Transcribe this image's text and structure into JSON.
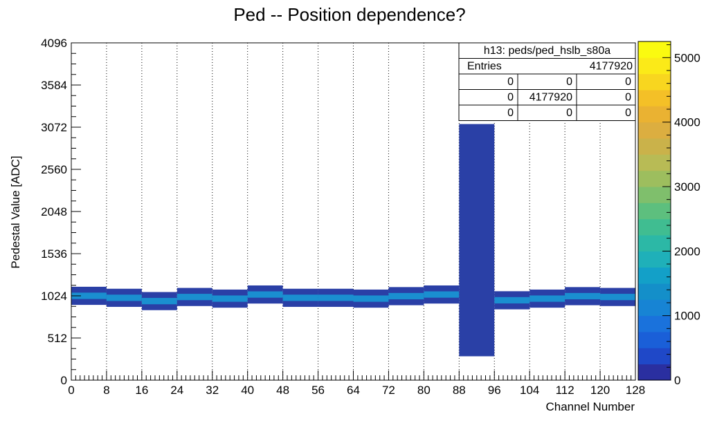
{
  "chart_data": {
    "type": "heatmap",
    "title": "Ped -- Position dependence?",
    "xlabel": "Channel Number",
    "ylabel": "Pedestal Value [ADC]",
    "xlim": [
      0,
      128
    ],
    "ylim": [
      0,
      4096
    ],
    "x_ticks": [
      "0",
      "8",
      "16",
      "24",
      "32",
      "40",
      "48",
      "56",
      "64",
      "72",
      "80",
      "88",
      "96",
      "104",
      "112",
      "120",
      "128"
    ],
    "y_ticks": [
      "0",
      "512",
      "1024",
      "1536",
      "2048",
      "2560",
      "3072",
      "3584",
      "4096"
    ],
    "z_range": [
      0,
      5250
    ],
    "colorbar_ticks": [
      "0",
      "1000",
      "2000",
      "3000",
      "4000",
      "5000"
    ],
    "grid": "vertical dotted lines at x ticks",
    "stats_box": {
      "title": "h13: peds/ped_hslb_s80a",
      "entries_label": "Entries",
      "entries_value": "4177920",
      "rows": [
        [
          "0",
          "0",
          "0"
        ],
        [
          "0",
          "4177920",
          "0"
        ],
        [
          "0",
          "0",
          "0"
        ]
      ]
    },
    "pedestal_band": {
      "description_channels": [
        0,
        88,
        96,
        128
      ],
      "typical_center_adc": [
        1024,
        1000,
        960,
        1010,
        990,
        1040,
        1000,
        1000,
        990,
        1020,
        1040,
        1020,
        970,
        990,
        1020,
        1010
      ],
      "typical_half_width_adc": 110
    },
    "noisy_channels": {
      "x_range": [
        88,
        96
      ],
      "y_range": [
        290,
        3110
      ]
    },
    "colors": {
      "band_edge": "#2a3fa6",
      "band_core": "#1a8fd0",
      "noisy": "#2a40a6"
    }
  }
}
